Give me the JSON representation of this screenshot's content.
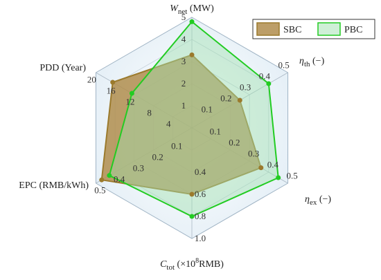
{
  "chart_data": {
    "type": "radar",
    "axes": [
      {
        "label": [
          {
            "text": "W",
            "role": "italic"
          },
          {
            "text": "net",
            "role": "sub"
          },
          {
            "text": " (MW)",
            "role": "plain"
          }
        ],
        "lim": [
          0,
          5
        ],
        "ticks": [
          1,
          2,
          3,
          4,
          5
        ]
      },
      {
        "label": [
          {
            "text": "η",
            "role": "italic"
          },
          {
            "text": "th",
            "role": "sub"
          },
          {
            "text": " (−)",
            "role": "plain"
          }
        ],
        "lim": [
          0,
          0.5
        ],
        "ticks": [
          0.1,
          0.2,
          0.3,
          0.4,
          0.5
        ]
      },
      {
        "label": [
          {
            "text": "η",
            "role": "italic"
          },
          {
            "text": "ex",
            "role": "sub"
          },
          {
            "text": " (−)",
            "role": "plain"
          }
        ],
        "lim": [
          0,
          0.5
        ],
        "ticks": [
          0.1,
          0.2,
          0.3,
          0.4,
          0.5
        ]
      },
      {
        "label": [
          {
            "text": "C",
            "role": "italic"
          },
          {
            "text": "tot",
            "role": "sub"
          },
          {
            "text": " (×10",
            "role": "plain"
          },
          {
            "text": "8",
            "role": "sup"
          },
          {
            "text": "RMB)",
            "role": "plain"
          }
        ],
        "lim": [
          0,
          1
        ],
        "ticks": [
          0.4,
          0.6,
          0.8,
          {
            "value": 1,
            "label": "1.0"
          }
        ]
      },
      {
        "label": [
          {
            "text": "EPC (RMB/kWh)",
            "role": "plain"
          }
        ],
        "lim": [
          0,
          0.5
        ],
        "ticks": [
          0.1,
          0.2,
          0.3,
          0.4,
          0.5
        ]
      },
      {
        "label": [
          {
            "text": "PDD (Year)",
            "role": "plain"
          }
        ],
        "lim": [
          0,
          20
        ],
        "ticks": [
          4,
          8,
          12,
          16,
          20
        ]
      }
    ],
    "series": [
      {
        "name": "SBC",
        "color": "#9b7a2c",
        "fill": "#b08d4e",
        "values": [
          3.3,
          0.25,
          0.36,
          0.6,
          0.47,
          16.5
        ]
      },
      {
        "name": "PBC",
        "color": "#22cc22",
        "fill": "#9fe0b0",
        "values": [
          4.8,
          0.4,
          0.45,
          0.8,
          0.43,
          12.5
        ]
      }
    ],
    "legend": "upper right"
  }
}
